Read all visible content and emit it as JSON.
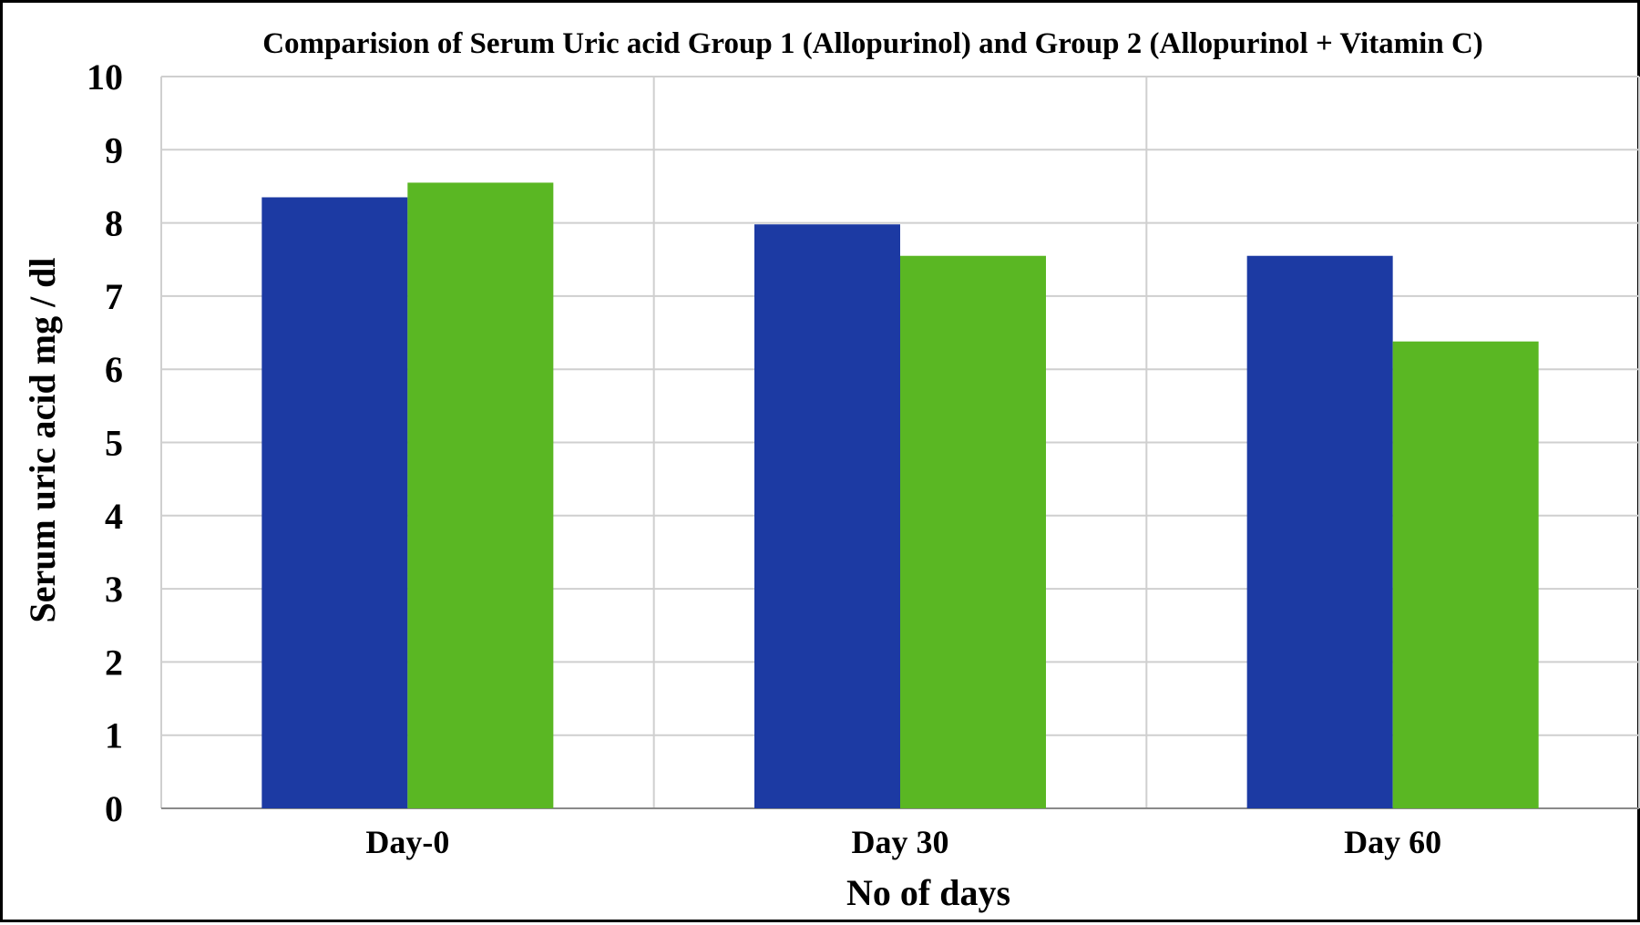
{
  "chart_data": {
    "type": "bar",
    "title": "Comparision of Serum Uric acid Group 1  (Allopurinol) and Group 2 (Allopurinol + Vitamin C)",
    "xlabel": "No of days",
    "ylabel": "Serum uric acid mg / dl",
    "categories": [
      "Day-0",
      "Day 30",
      "Day 60"
    ],
    "series": [
      {
        "values": [
          8.35,
          7.98,
          7.55
        ],
        "color": "#1c3aa3"
      },
      {
        "values": [
          8.55,
          7.55,
          6.38
        ],
        "color": "#5ab723"
      }
    ],
    "ylim": [
      0,
      10
    ],
    "yticks": [
      "0",
      "1",
      "2",
      "3",
      "4",
      "5",
      "6",
      "7",
      "8",
      "9",
      "10"
    ],
    "grid": true,
    "legend": "none"
  }
}
